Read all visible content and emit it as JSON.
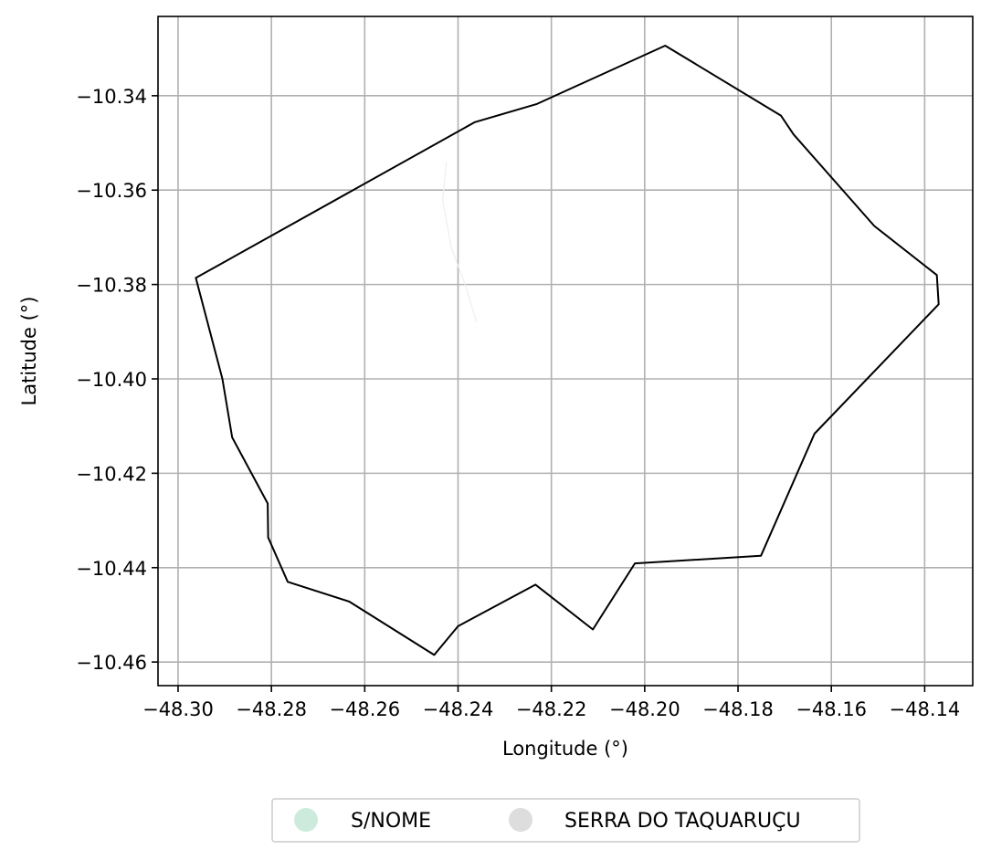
{
  "chart_data": {
    "type": "map",
    "xlabel": "Longitude (°)",
    "ylabel": "Latitude (°)",
    "xlim": [
      -48.3043,
      -48.1297
    ],
    "ylim": [
      -10.465,
      -10.3232
    ],
    "xticks": [
      -48.3,
      -48.28,
      -48.26,
      -48.24,
      -48.22,
      -48.2,
      -48.18,
      -48.16,
      -48.14
    ],
    "xtick_labels": [
      "−48.30",
      "−48.28",
      "−48.26",
      "−48.24",
      "−48.22",
      "−48.20",
      "−48.18",
      "−48.16",
      "−48.14"
    ],
    "yticks": [
      -10.34,
      -10.36,
      -10.38,
      -10.4,
      -10.42,
      -10.44,
      -10.46
    ],
    "ytick_labels": [
      "−10.34",
      "−10.36",
      "−10.38",
      "−10.40",
      "−10.42",
      "−10.44",
      "−10.46"
    ],
    "grid": true,
    "legend_position": "bottom-center, below plot",
    "series": [
      {
        "name": "S/NOME",
        "color": "#cdebdd"
      },
      {
        "name": "SERRA DO TAQUARUÇU",
        "color": "#dddddd"
      }
    ],
    "boundary_color": "#000000",
    "boundary": [
      [
        -48.2962,
        -10.3786
      ],
      [
        -48.2364,
        -10.3456
      ],
      [
        -48.2232,
        -10.3418
      ],
      [
        -48.1956,
        -10.3294
      ],
      [
        -48.1708,
        -10.3442
      ],
      [
        -48.1681,
        -10.3482
      ],
      [
        -48.1508,
        -10.3676
      ],
      [
        -48.1374,
        -10.378
      ],
      [
        -48.137,
        -10.3842
      ],
      [
        -48.1636,
        -10.4116
      ],
      [
        -48.1751,
        -10.4375
      ],
      [
        -48.2021,
        -10.4391
      ],
      [
        -48.2111,
        -10.4531
      ],
      [
        -48.2234,
        -10.4436
      ],
      [
        -48.24,
        -10.4524
      ],
      [
        -48.2451,
        -10.4585
      ],
      [
        -48.2633,
        -10.4472
      ],
      [
        -48.2765,
        -10.443
      ],
      [
        -48.2807,
        -10.4336
      ],
      [
        -48.2808,
        -10.4264
      ],
      [
        -48.2884,
        -10.4124
      ],
      [
        -48.2905,
        -10.4
      ],
      [
        -48.2962,
        -10.3786
      ]
    ],
    "faint_line": [
      [
        -48.2425,
        -10.354
      ],
      [
        -48.2433,
        -10.362
      ],
      [
        -48.2415,
        -10.372
      ],
      [
        -48.2385,
        -10.38
      ],
      [
        -48.236,
        -10.388
      ]
    ]
  }
}
